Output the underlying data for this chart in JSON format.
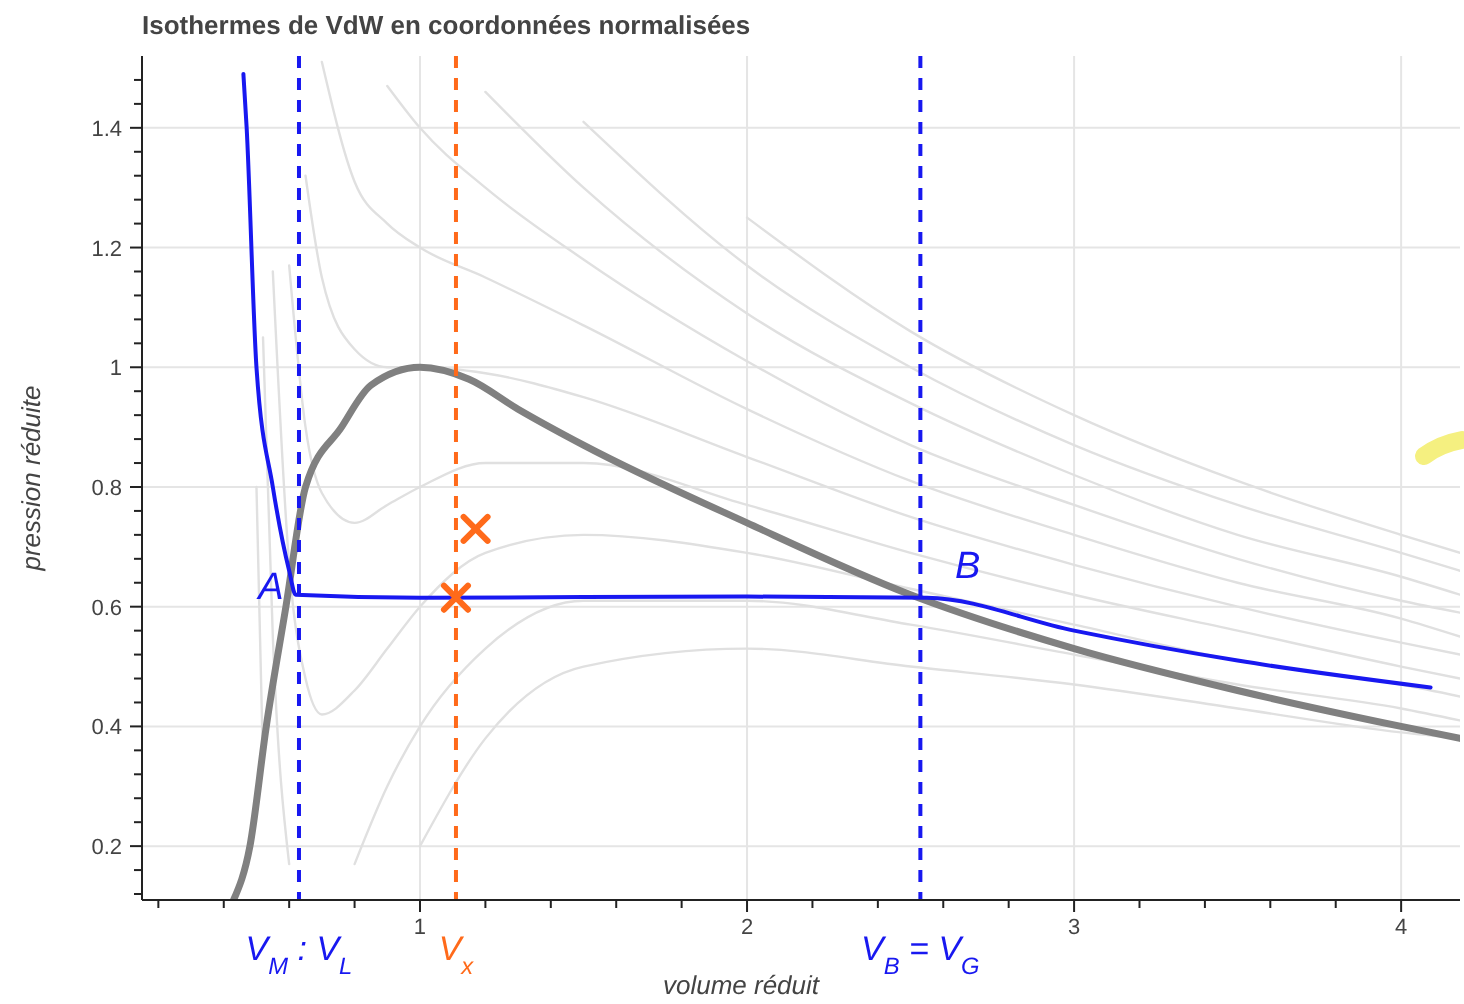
{
  "chart_data": {
    "type": "line",
    "title": "Isothermes de VdW en coordonnées normalisées",
    "xlabel": "volume réduit",
    "ylabel": "pression réduite",
    "x": [
      0.5,
      0.52,
      0.55,
      0.6,
      0.65,
      0.7,
      0.8,
      0.9,
      1.0,
      1.2,
      1.5,
      2,
      2.5,
      3,
      3.5,
      4,
      4.18
    ],
    "series": [
      {
        "color": "#e0e0e0",
        "values": [
          0.8,
          0.34,
          null,
          null,
          null,
          null,
          null,
          null,
          0.2,
          0.38,
          0.5,
          0.53,
          0.5,
          0.47,
          0.43,
          0.39,
          0.38
        ]
      },
      {
        "color": "#e0e0e0",
        "values": [
          null,
          1.05,
          0.55,
          0.17,
          null,
          null,
          0.17,
          0.3,
          0.4,
          0.53,
          0.61,
          0.61,
          0.57,
          0.52,
          0.47,
          0.43,
          0.41
        ]
      },
      {
        "color": "#e0e0e0",
        "values": [
          null,
          null,
          1.16,
          0.67,
          0.48,
          0.42,
          0.46,
          0.53,
          0.6,
          0.69,
          0.72,
          0.69,
          0.63,
          0.57,
          0.51,
          0.47,
          0.45
        ]
      },
      {
        "color": "#e0e0e0",
        "values": [
          null,
          null,
          null,
          1.17,
          0.9,
          0.79,
          0.74,
          0.77,
          0.8,
          0.84,
          0.84,
          0.77,
          0.69,
          0.62,
          0.56,
          0.5,
          0.48
        ]
      },
      {
        "color": "#e0e0e0",
        "values": [
          null,
          null,
          null,
          null,
          1.32,
          1.15,
          1.03,
          1.0,
          1.0,
          0.99,
          0.95,
          0.85,
          0.75,
          0.67,
          0.6,
          0.54,
          0.52
        ]
      },
      {
        "color": "#e0e0e0",
        "values": [
          null,
          null,
          null,
          null,
          null,
          1.51,
          1.31,
          1.24,
          1.2,
          1.15,
          1.07,
          0.93,
          0.81,
          0.72,
          0.64,
          0.58,
          0.55
        ]
      },
      {
        "color": "#e0e0e0",
        "values": [
          null,
          null,
          null,
          null,
          null,
          null,
          null,
          1.47,
          1.4,
          1.3,
          1.18,
          1.01,
          0.87,
          0.77,
          0.68,
          0.61,
          0.59
        ]
      },
      {
        "color": "#e0e0e0",
        "values": [
          null,
          null,
          null,
          null,
          null,
          null,
          null,
          null,
          null,
          1.46,
          1.3,
          1.09,
          0.94,
          0.82,
          0.72,
          0.65,
          0.62
        ]
      },
      {
        "color": "#e0e0e0",
        "values": [
          null,
          null,
          null,
          null,
          null,
          null,
          null,
          null,
          null,
          null,
          1.41,
          1.17,
          1.0,
          0.87,
          0.77,
          0.69,
          0.66
        ]
      },
      {
        "color": "#e0e0e0",
        "values": [
          null,
          null,
          null,
          null,
          null,
          null,
          null,
          null,
          null,
          null,
          null,
          1.25,
          1.06,
          0.92,
          0.81,
          0.72,
          0.69
        ]
      },
      {
        "color": "#808080",
        "x": [
          0.43,
          0.48,
          0.53,
          0.59,
          0.65,
          0.76,
          0.85,
          1.0,
          1.15,
          1.3,
          1.5,
          2.0,
          2.5,
          3.0,
          3.5,
          4.0,
          4.18
        ],
        "values": [
          0.11,
          0.2,
          0.4,
          0.6,
          0.8,
          0.9,
          0.97,
          1.0,
          0.98,
          0.93,
          0.87,
          0.74,
          0.62,
          0.53,
          0.46,
          0.4,
          0.38
        ]
      },
      {
        "color": "#1818f0",
        "x": [
          0.46,
          0.47,
          0.5,
          0.55,
          0.6,
          0.62,
          1.0,
          2.0,
          2.55,
          3.0,
          3.5,
          4.09
        ],
        "values": [
          1.49,
          1.4,
          1.0,
          0.8,
          0.66,
          0.62,
          0.615,
          0.617,
          0.615,
          0.56,
          0.51,
          0.465
        ]
      },
      {
        "type": "scatter",
        "marker": "cross",
        "color": "#ff6a1a",
        "x": [
          1.11,
          1.17
        ],
        "values": [
          0.615,
          0.73
        ]
      }
    ],
    "annotations": [
      {
        "text": "A",
        "x": 0.62,
        "y": 0.62
      },
      {
        "text": "B",
        "x": 2.55,
        "y": 0.615
      }
    ],
    "ref_lines": [
      {
        "axis": "x",
        "value": 0.63,
        "label": "V$_{M}$ : V$_{L}$",
        "color": "#1818f0",
        "line_style": "dashed"
      },
      {
        "axis": "x",
        "value": 1.11,
        "label": "V$_{x}$",
        "color": "#ff6a1a",
        "line_style": "dashed"
      },
      {
        "axis": "x",
        "value": 2.53,
        "label": "V$_{B}$ = V$_{G}$",
        "color": "#1818f0",
        "line_style": "dashed"
      }
    ],
    "xlim": [
      0.15,
      4.18
    ],
    "ylim": [
      0.11,
      1.52
    ],
    "xticks": [
      {
        "value": 0.2,
        "label": null
      },
      {
        "value": 0.4,
        "label": null
      },
      {
        "value": 0.6,
        "label": null
      },
      {
        "value": 0.8,
        "label": null
      },
      1,
      {
        "value": 1.2,
        "label": null
      },
      {
        "value": 1.4,
        "label": null
      },
      {
        "value": 1.6,
        "label": null
      },
      {
        "value": 1.8,
        "label": null
      },
      2,
      {
        "value": 2.2,
        "label": null
      },
      {
        "value": 2.4,
        "label": null
      },
      {
        "value": 2.6,
        "label": null
      },
      {
        "value": 2.8,
        "label": null
      },
      3,
      {
        "value": 3.2,
        "label": null
      },
      {
        "value": 3.4,
        "label": null
      },
      {
        "value": 3.6,
        "label": null
      },
      {
        "value": 3.8,
        "label": null
      },
      4
    ],
    "yticks": [
      {
        "value": 0.12,
        "label": null
      },
      {
        "value": 0.16,
        "label": null
      },
      0.2,
      {
        "value": 0.24,
        "label": null
      },
      {
        "value": 0.28,
        "label": null
      },
      {
        "value": 0.32,
        "label": null
      },
      {
        "value": 0.36,
        "label": null
      },
      0.4,
      {
        "value": 0.44,
        "label": null
      },
      {
        "value": 0.48,
        "label": null
      },
      {
        "value": 0.52,
        "label": null
      },
      {
        "value": 0.56,
        "label": null
      },
      0.6,
      {
        "value": 0.64,
        "label": null
      },
      {
        "value": 0.68,
        "label": null
      },
      {
        "value": 0.72,
        "label": null
      },
      {
        "value": 0.76,
        "label": null
      },
      0.8,
      {
        "value": 0.84,
        "label": null
      },
      {
        "value": 0.88,
        "label": null
      },
      {
        "value": 0.92,
        "label": null
      },
      {
        "value": 0.96,
        "label": null
      },
      1,
      {
        "value": 1.04,
        "label": null
      },
      {
        "value": 1.08,
        "label": null
      },
      {
        "value": 1.12,
        "label": null
      },
      {
        "value": 1.16,
        "label": null
      },
      1.2,
      {
        "value": 1.24,
        "label": null
      },
      {
        "value": 1.28,
        "label": null
      },
      {
        "value": 1.32,
        "label": null
      },
      {
        "value": 1.36,
        "label": null
      },
      1.4,
      {
        "value": 1.44,
        "label": null
      },
      {
        "value": 1.48,
        "label": null
      }
    ],
    "grid": true,
    "marker": "none",
    "line_style": "solid"
  }
}
